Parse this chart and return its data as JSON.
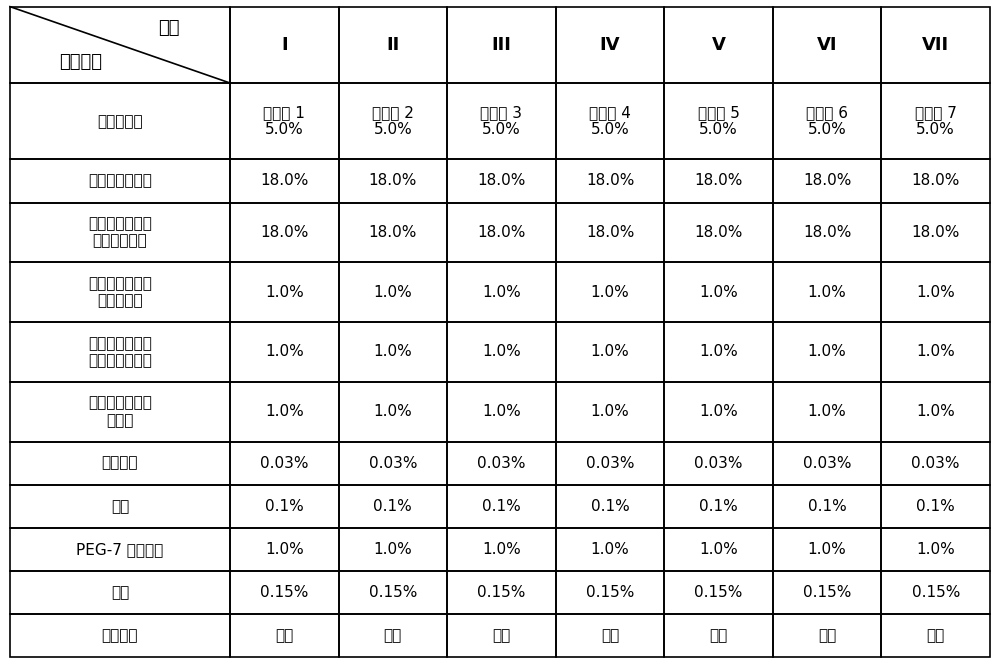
{
  "col_headers": [
    "I",
    "II",
    "III",
    "IV",
    "V",
    "VI",
    "VII"
  ],
  "header_corner_top": "配方",
  "header_corner_bottom": "物料名称",
  "row_labels": [
    "表面活性剂",
    "月桂醇磷酸酯钾",
    "椰油酰胺丙基羟\n基磺基甜菜碱",
    "椰油基葡糖苷羟\n丙基磺酸钠",
    "蓖麻醇酸酰胺丙\n基三甲基氯化铵",
    "丙烯酸（酯）类\n共聚物",
    "三乙醇胺",
    "卡松",
    "PEG-7 橄榄油酯",
    "香精",
    "去离子水"
  ],
  "cell_data": [
    [
      "实施例 1\n5.0%",
      "实施例 2\n5.0%",
      "实施例 3\n5.0%",
      "实施例 4\n5.0%",
      "实施例 5\n5.0%",
      "实施例 6\n5.0%",
      "实施例 7\n5.0%"
    ],
    [
      "18.0%",
      "18.0%",
      "18.0%",
      "18.0%",
      "18.0%",
      "18.0%",
      "18.0%"
    ],
    [
      "18.0%",
      "18.0%",
      "18.0%",
      "18.0%",
      "18.0%",
      "18.0%",
      "18.0%"
    ],
    [
      "1.0%",
      "1.0%",
      "1.0%",
      "1.0%",
      "1.0%",
      "1.0%",
      "1.0%"
    ],
    [
      "1.0%",
      "1.0%",
      "1.0%",
      "1.0%",
      "1.0%",
      "1.0%",
      "1.0%"
    ],
    [
      "1.0%",
      "1.0%",
      "1.0%",
      "1.0%",
      "1.0%",
      "1.0%",
      "1.0%"
    ],
    [
      "0.03%",
      "0.03%",
      "0.03%",
      "0.03%",
      "0.03%",
      "0.03%",
      "0.03%"
    ],
    [
      "0.1%",
      "0.1%",
      "0.1%",
      "0.1%",
      "0.1%",
      "0.1%",
      "0.1%"
    ],
    [
      "1.0%",
      "1.0%",
      "1.0%",
      "1.0%",
      "1.0%",
      "1.0%",
      "1.0%"
    ],
    [
      "0.15%",
      "0.15%",
      "0.15%",
      "0.15%",
      "0.15%",
      "0.15%",
      "0.15%"
    ],
    [
      "余量",
      "余量",
      "余量",
      "余量",
      "余量",
      "余量",
      "余量"
    ]
  ],
  "background_color": "#ffffff",
  "border_color": "#000000",
  "text_color": "#000000",
  "header_fontsize": 13,
  "cell_fontsize": 11,
  "row_label_fontsize": 11
}
